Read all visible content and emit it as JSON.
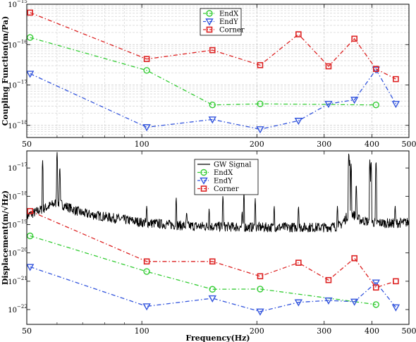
{
  "chart_data": [
    {
      "type": "line",
      "ylabel": "Coupling Function(m/Pa)",
      "xlabel": "",
      "xscale": "log",
      "yscale": "log",
      "xlim": [
        50,
        500
      ],
      "ylim": [
        5e-19,
        1e-15
      ],
      "x_ticks": [
        50,
        100,
        200,
        300,
        400,
        500
      ],
      "x_tick_labels": [
        "50",
        "100",
        "200",
        "300",
        "400",
        "500"
      ],
      "y_ticks": [
        1e-18,
        1e-17,
        1e-16,
        1e-15
      ],
      "y_tick_labels": [
        {
          "base": "10",
          "exp": "−18"
        },
        {
          "base": "10",
          "exp": "−17"
        },
        {
          "base": "10",
          "exp": "−16"
        },
        {
          "base": "10",
          "exp": "−15"
        }
      ],
      "grid": true,
      "legend_position": "top-center",
      "series": [
        {
          "name": "EndX",
          "color": "#33cc33",
          "marker": "circle",
          "linestyle": "dashdot",
          "x": [
            51,
            103,
            153,
            204,
            410
          ],
          "y": [
            1.5e-16,
            2.3e-17,
            3.2e-18,
            3.4e-18,
            3.2e-18
          ]
        },
        {
          "name": "EndY",
          "color": "#3355dd",
          "marker": "triangle-down",
          "linestyle": "dashdot",
          "x": [
            51,
            103,
            153,
            204,
            257,
            308,
            360,
            410,
            462
          ],
          "y": [
            1.9e-17,
            9e-19,
            1.4e-18,
            8e-19,
            1.3e-18,
            3.4e-18,
            4.3e-18,
            2.4e-17,
            3.4e-18
          ]
        },
        {
          "name": "Corner",
          "color": "#dd2222",
          "marker": "square",
          "linestyle": "dashdot",
          "x": [
            51,
            103,
            153,
            204,
            257,
            308,
            360,
            410,
            462
          ],
          "y": [
            6.2e-16,
            4.4e-17,
            7.3e-17,
            3.1e-17,
            1.8e-16,
            2.9e-17,
            1.4e-16,
            2.5e-17,
            1.4e-17
          ]
        }
      ]
    },
    {
      "type": "line",
      "ylabel": "Displacement(m/√Hz)",
      "xlabel": "Frequency(Hz)",
      "xscale": "log",
      "yscale": "log",
      "xlim": [
        50,
        500
      ],
      "ylim": [
        3e-23,
        4e-17
      ],
      "x_ticks": [
        50,
        100,
        200,
        300,
        400,
        500
      ],
      "x_tick_labels": [
        "50",
        "100",
        "200",
        "300",
        "400",
        "500"
      ],
      "y_ticks": [
        1e-22,
        1e-21,
        1e-20,
        1e-19,
        1e-18,
        1e-17
      ],
      "y_tick_labels": [
        {
          "base": "10",
          "exp": "−22"
        },
        {
          "base": "10",
          "exp": "−21"
        },
        {
          "base": "10",
          "exp": "−20"
        },
        {
          "base": "10",
          "exp": "−19"
        },
        {
          "base": "10",
          "exp": "−18"
        },
        {
          "base": "10",
          "exp": "−17"
        }
      ],
      "grid": false,
      "legend_position": "top-center",
      "signal": {
        "name": "GW Signal",
        "color": "#000000",
        "baseline": [
          [
            50,
            2e-19
          ],
          [
            60,
            6e-19
          ],
          [
            70,
            2.5e-19
          ],
          [
            100,
            1.2e-19
          ],
          [
            130,
            9e-20
          ],
          [
            200,
            8e-20
          ],
          [
            300,
            8e-20
          ],
          [
            330,
            9e-20
          ],
          [
            345,
            2e-19
          ],
          [
            355,
            2.5e-19
          ],
          [
            370,
            1.5e-19
          ],
          [
            400,
            1.2e-19
          ],
          [
            450,
            1.1e-19
          ],
          [
            500,
            1.2e-19
          ]
        ],
        "peaks": [
          [
            55,
            2e-17
          ],
          [
            60,
            4e-17
          ],
          [
            61,
            1.2e-17
          ],
          [
            103,
            5e-19
          ],
          [
            123,
            1e-18
          ],
          [
            131,
            3e-19
          ],
          [
            150,
            4e-19
          ],
          [
            163,
            1.2e-18
          ],
          [
            183,
            3e-19
          ],
          [
            185,
            1.5e-18
          ],
          [
            198,
            9e-19
          ],
          [
            222,
            5e-19
          ],
          [
            257,
            5e-19
          ],
          [
            325,
            5e-19
          ],
          [
            348,
            4e-17
          ],
          [
            350,
            2e-17
          ],
          [
            353,
            1.5e-17
          ],
          [
            364,
            3e-18
          ],
          [
            395,
            2e-17
          ],
          [
            398,
            2e-17
          ],
          [
            410,
            2e-17
          ],
          [
            460,
            5e-19
          ]
        ]
      },
      "series": [
        {
          "name": "EndX",
          "color": "#33cc33",
          "marker": "circle",
          "linestyle": "dashdot",
          "x": [
            51,
            103,
            153,
            204,
            410
          ],
          "y": [
            4e-20,
            2.2e-21,
            5.2e-22,
            5.3e-22,
            1.5e-22
          ]
        },
        {
          "name": "EndY",
          "color": "#3355dd",
          "marker": "triangle-down",
          "linestyle": "dashdot",
          "x": [
            51,
            103,
            153,
            204,
            257,
            308,
            360,
            410,
            462
          ],
          "y": [
            3.2e-21,
            1.3e-22,
            2.5e-22,
            8.5e-23,
            1.8e-22,
            2.1e-22,
            1.9e-22,
            9e-22,
            1.2e-22
          ]
        },
        {
          "name": "Corner",
          "color": "#dd2222",
          "marker": "square",
          "linestyle": "dashdot",
          "x": [
            51,
            103,
            153,
            204,
            257,
            308,
            360,
            410,
            462
          ],
          "y": [
            3e-19,
            5e-21,
            5e-21,
            1.5e-21,
            4.5e-21,
            1.1e-21,
            6.5e-21,
            6e-22,
            1e-21
          ]
        }
      ]
    }
  ]
}
